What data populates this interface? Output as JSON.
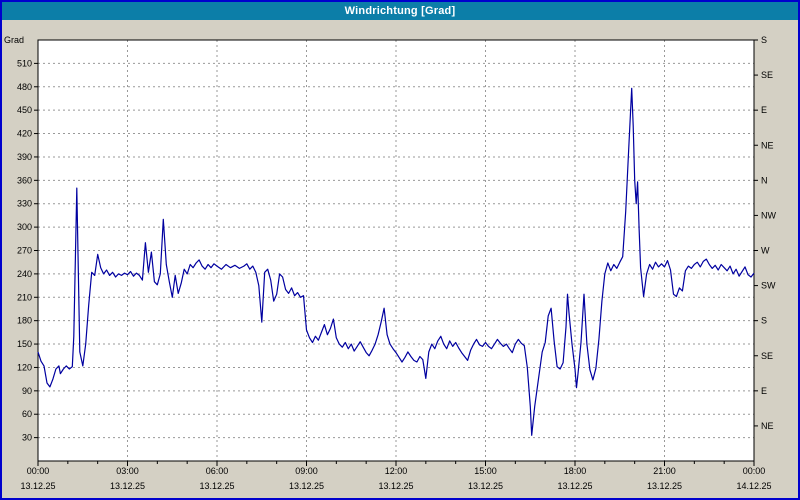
{
  "window": {
    "title": "Windrichtung [Grad]"
  },
  "colors": {
    "window_border": "#0000cd",
    "titlebar_bg": "#0c7ea8",
    "titlebar_text": "#ffffff",
    "chart_bg": "#d4d0c4",
    "plot_bg": "#ffffff",
    "grid": "#999999",
    "axis": "#000000",
    "line": "#0000a0"
  },
  "chart_data": {
    "type": "line",
    "title": "Windrichtung [Grad]",
    "grid": {
      "style": "dashed",
      "horizontal_step": 30,
      "vertical_step_hours": 3,
      "color": "#999999"
    },
    "y_axis_left": {
      "label": "Grad",
      "min": 0,
      "max": 540,
      "tick_step": 30,
      "tick_values": [
        30,
        60,
        90,
        120,
        150,
        180,
        210,
        240,
        270,
        300,
        330,
        360,
        390,
        420,
        450,
        480,
        510
      ]
    },
    "y_axis_right": {
      "tick_values": [
        45,
        90,
        135,
        180,
        225,
        270,
        315,
        360,
        405,
        450,
        495,
        540
      ],
      "tick_labels": [
        "NE",
        "E",
        "SE",
        "S",
        "SW",
        "W",
        "NW",
        "N",
        "NE",
        "E",
        "SE",
        "S"
      ]
    },
    "x_axis": {
      "min_hours": 0,
      "max_hours": 24,
      "tick_values": [
        0,
        3,
        6,
        9,
        12,
        15,
        18,
        21,
        24
      ],
      "tick_labels": [
        "00:00",
        "03:00",
        "06:00",
        "09:00",
        "12:00",
        "15:00",
        "18:00",
        "21:00",
        "00:00"
      ],
      "date_labels": [
        "13.12.25",
        "13.12.25",
        "13.12.25",
        "13.12.25",
        "13.12.25",
        "13.12.25",
        "13.12.25",
        "13.12.25",
        "14.12.25"
      ]
    },
    "series": [
      {
        "name": "Windrichtung",
        "unit": "Grad",
        "color": "#0000a0",
        "points": [
          [
            0,
            140
          ],
          [
            0.1,
            128
          ],
          [
            0.2,
            122
          ],
          [
            0.3,
            100
          ],
          [
            0.4,
            95
          ],
          [
            0.5,
            105
          ],
          [
            0.6,
            118
          ],
          [
            0.7,
            122
          ],
          [
            0.75,
            112
          ],
          [
            0.85,
            118
          ],
          [
            0.95,
            122
          ],
          [
            1.05,
            118
          ],
          [
            1.15,
            121
          ],
          [
            1.2,
            160
          ],
          [
            1.3,
            350
          ],
          [
            1.4,
            140
          ],
          [
            1.5,
            122
          ],
          [
            1.6,
            150
          ],
          [
            1.7,
            200
          ],
          [
            1.8,
            242
          ],
          [
            1.9,
            238
          ],
          [
            2,
            265
          ],
          [
            2.1,
            248
          ],
          [
            2.2,
            240
          ],
          [
            2.3,
            245
          ],
          [
            2.4,
            238
          ],
          [
            2.5,
            242
          ],
          [
            2.6,
            236
          ],
          [
            2.7,
            240
          ],
          [
            2.8,
            238
          ],
          [
            2.9,
            241
          ],
          [
            3,
            239
          ],
          [
            3.1,
            243
          ],
          [
            3.2,
            237
          ],
          [
            3.3,
            241
          ],
          [
            3.4,
            238
          ],
          [
            3.5,
            232
          ],
          [
            3.6,
            280
          ],
          [
            3.7,
            242
          ],
          [
            3.8,
            268
          ],
          [
            3.9,
            230
          ],
          [
            4,
            226
          ],
          [
            4.1,
            240
          ],
          [
            4.2,
            310
          ],
          [
            4.3,
            252
          ],
          [
            4.4,
            230
          ],
          [
            4.5,
            210
          ],
          [
            4.6,
            238
          ],
          [
            4.7,
            215
          ],
          [
            4.8,
            228
          ],
          [
            4.9,
            246
          ],
          [
            5,
            240
          ],
          [
            5.1,
            252
          ],
          [
            5.2,
            248
          ],
          [
            5.3,
            254
          ],
          [
            5.4,
            258
          ],
          [
            5.5,
            250
          ],
          [
            5.6,
            246
          ],
          [
            5.7,
            252
          ],
          [
            5.8,
            248
          ],
          [
            5.9,
            253
          ],
          [
            6,
            250
          ],
          [
            6.15,
            246
          ],
          [
            6.3,
            252
          ],
          [
            6.45,
            248
          ],
          [
            6.6,
            251
          ],
          [
            6.75,
            247
          ],
          [
            6.9,
            250
          ],
          [
            7,
            253
          ],
          [
            7.1,
            246
          ],
          [
            7.2,
            250
          ],
          [
            7.3,
            242
          ],
          [
            7.4,
            225
          ],
          [
            7.5,
            178
          ],
          [
            7.6,
            242
          ],
          [
            7.7,
            246
          ],
          [
            7.8,
            232
          ],
          [
            7.9,
            205
          ],
          [
            8,
            214
          ],
          [
            8.1,
            240
          ],
          [
            8.2,
            236
          ],
          [
            8.3,
            220
          ],
          [
            8.4,
            215
          ],
          [
            8.5,
            222
          ],
          [
            8.6,
            212
          ],
          [
            8.7,
            216
          ],
          [
            8.8,
            210
          ],
          [
            8.9,
            212
          ],
          [
            9,
            168
          ],
          [
            9.1,
            158
          ],
          [
            9.2,
            152
          ],
          [
            9.3,
            160
          ],
          [
            9.4,
            155
          ],
          [
            9.5,
            165
          ],
          [
            9.6,
            175
          ],
          [
            9.7,
            162
          ],
          [
            9.8,
            170
          ],
          [
            9.9,
            182
          ],
          [
            10,
            158
          ],
          [
            10.1,
            150
          ],
          [
            10.2,
            146
          ],
          [
            10.3,
            152
          ],
          [
            10.4,
            144
          ],
          [
            10.5,
            150
          ],
          [
            10.6,
            141
          ],
          [
            10.7,
            147
          ],
          [
            10.8,
            153
          ],
          [
            10.9,
            146
          ],
          [
            11,
            139
          ],
          [
            11.1,
            135
          ],
          [
            11.2,
            142
          ],
          [
            11.3,
            150
          ],
          [
            11.4,
            162
          ],
          [
            11.5,
            178
          ],
          [
            11.6,
            196
          ],
          [
            11.7,
            162
          ],
          [
            11.8,
            150
          ],
          [
            11.9,
            144
          ],
          [
            12,
            139
          ],
          [
            12.1,
            133
          ],
          [
            12.2,
            127
          ],
          [
            12.3,
            133
          ],
          [
            12.4,
            140
          ],
          [
            12.5,
            134
          ],
          [
            12.6,
            129
          ],
          [
            12.7,
            127
          ],
          [
            12.8,
            134
          ],
          [
            12.9,
            130
          ],
          [
            13,
            106
          ],
          [
            13.1,
            140
          ],
          [
            13.2,
            150
          ],
          [
            13.3,
            144
          ],
          [
            13.4,
            154
          ],
          [
            13.5,
            160
          ],
          [
            13.6,
            150
          ],
          [
            13.7,
            144
          ],
          [
            13.8,
            154
          ],
          [
            13.9,
            147
          ],
          [
            14,
            152
          ],
          [
            14.1,
            145
          ],
          [
            14.2,
            139
          ],
          [
            14.3,
            134
          ],
          [
            14.4,
            129
          ],
          [
            14.5,
            142
          ],
          [
            14.6,
            150
          ],
          [
            14.7,
            156
          ],
          [
            14.8,
            149
          ],
          [
            14.9,
            147
          ],
          [
            15,
            152
          ],
          [
            15.1,
            147
          ],
          [
            15.2,
            144
          ],
          [
            15.3,
            150
          ],
          [
            15.4,
            156
          ],
          [
            15.5,
            151
          ],
          [
            15.6,
            147
          ],
          [
            15.7,
            150
          ],
          [
            15.8,
            144
          ],
          [
            15.9,
            139
          ],
          [
            16,
            150
          ],
          [
            16.1,
            156
          ],
          [
            16.2,
            151
          ],
          [
            16.3,
            148
          ],
          [
            16.4,
            120
          ],
          [
            16.5,
            70
          ],
          [
            16.55,
            33
          ],
          [
            16.65,
            70
          ],
          [
            16.8,
            112
          ],
          [
            16.9,
            140
          ],
          [
            17,
            152
          ],
          [
            17.1,
            186
          ],
          [
            17.2,
            196
          ],
          [
            17.3,
            154
          ],
          [
            17.4,
            121
          ],
          [
            17.5,
            118
          ],
          [
            17.6,
            126
          ],
          [
            17.7,
            172
          ],
          [
            17.75,
            214
          ],
          [
            17.8,
            190
          ],
          [
            17.9,
            150
          ],
          [
            18,
            118
          ],
          [
            18.05,
            94
          ],
          [
            18.1,
            112
          ],
          [
            18.2,
            152
          ],
          [
            18.3,
            214
          ],
          [
            18.4,
            150
          ],
          [
            18.5,
            117
          ],
          [
            18.6,
            104
          ],
          [
            18.7,
            119
          ],
          [
            18.8,
            156
          ],
          [
            18.9,
            205
          ],
          [
            19,
            240
          ],
          [
            19.1,
            254
          ],
          [
            19.2,
            244
          ],
          [
            19.3,
            252
          ],
          [
            19.4,
            247
          ],
          [
            19.5,
            255
          ],
          [
            19.6,
            262
          ],
          [
            19.7,
            320
          ],
          [
            19.8,
            400
          ],
          [
            19.9,
            478
          ],
          [
            19.95,
            430
          ],
          [
            20,
            360
          ],
          [
            20.05,
            330
          ],
          [
            20.1,
            358
          ],
          [
            20.15,
            298
          ],
          [
            20.2,
            248
          ],
          [
            20.3,
            211
          ],
          [
            20.4,
            240
          ],
          [
            20.5,
            252
          ],
          [
            20.6,
            246
          ],
          [
            20.7,
            255
          ],
          [
            20.8,
            249
          ],
          [
            20.9,
            253
          ],
          [
            21,
            249
          ],
          [
            21.1,
            257
          ],
          [
            21.2,
            245
          ],
          [
            21.3,
            214
          ],
          [
            21.4,
            211
          ],
          [
            21.5,
            222
          ],
          [
            21.6,
            218
          ],
          [
            21.7,
            244
          ],
          [
            21.8,
            250
          ],
          [
            21.9,
            247
          ],
          [
            22,
            252
          ],
          [
            22.1,
            255
          ],
          [
            22.2,
            249
          ],
          [
            22.3,
            256
          ],
          [
            22.4,
            259
          ],
          [
            22.5,
            252
          ],
          [
            22.6,
            247
          ],
          [
            22.7,
            251
          ],
          [
            22.8,
            245
          ],
          [
            22.9,
            252
          ],
          [
            23,
            248
          ],
          [
            23.1,
            244
          ],
          [
            23.2,
            250
          ],
          [
            23.3,
            240
          ],
          [
            23.4,
            246
          ],
          [
            23.5,
            237
          ],
          [
            23.6,
            243
          ],
          [
            23.7,
            249
          ],
          [
            23.8,
            239
          ],
          [
            23.9,
            236
          ],
          [
            24,
            241
          ]
        ]
      }
    ]
  }
}
